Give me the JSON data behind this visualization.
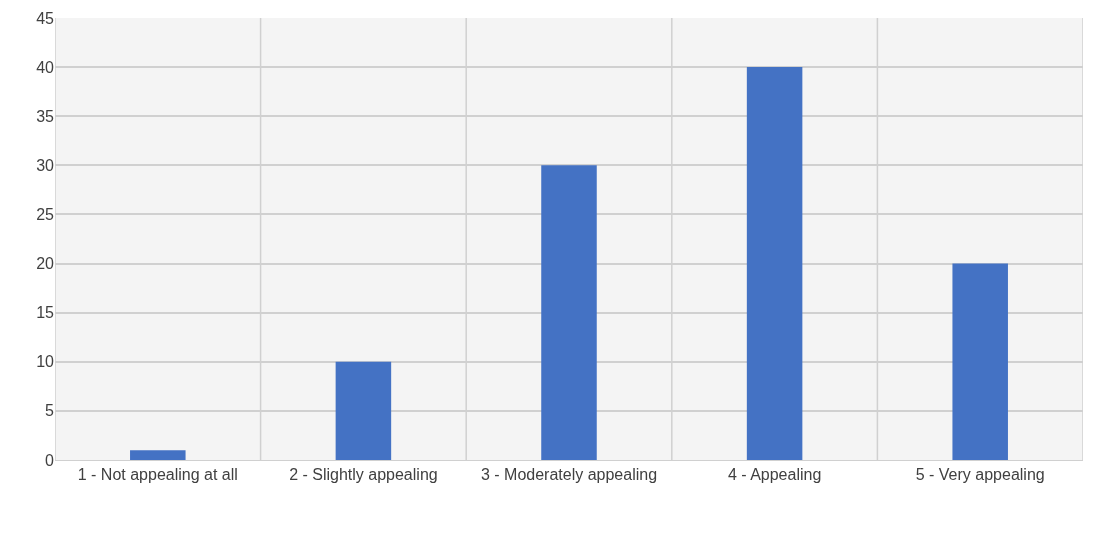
{
  "chart_data": {
    "type": "bar",
    "categories": [
      "1 - Not appealing at all",
      "2 - Slightly appealing",
      "3 - Moderately appealing",
      "4 - Appealing",
      "5 - Very appealing"
    ],
    "values": [
      1,
      10,
      30,
      40,
      20
    ],
    "color": "#4472c4",
    "ylim": [
      0,
      45
    ],
    "yticks": [
      0,
      5,
      10,
      15,
      20,
      25,
      30,
      35,
      40,
      45
    ],
    "grid": true,
    "legend": false
  }
}
